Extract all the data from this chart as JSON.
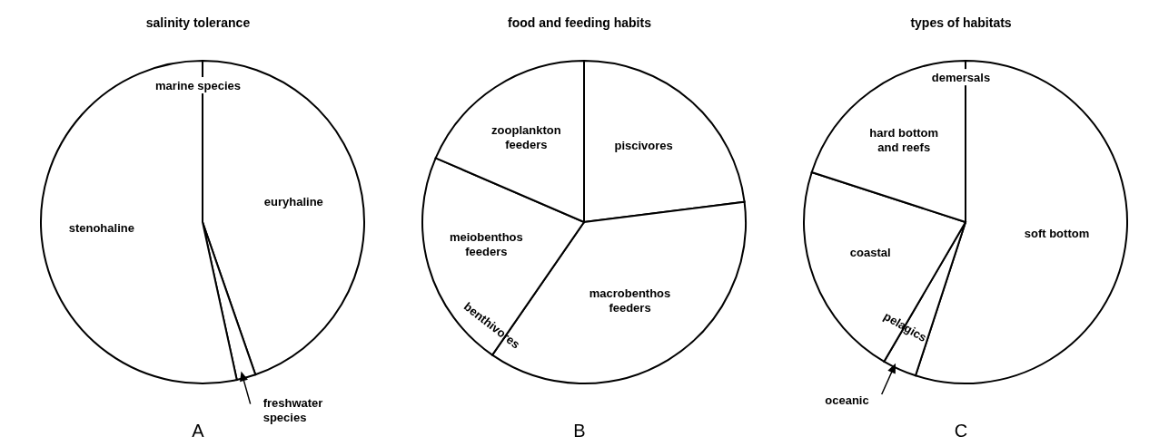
{
  "chart_data": [
    {
      "type": "pie",
      "title": "salinity tolerance",
      "categories": [
        "euryhaline",
        "freshwater species",
        "stenohaline"
      ],
      "values": [
        44.7,
        1.9,
        53.4
      ],
      "colors": [
        "#ffffff",
        "#ffffff",
        "#ffffff"
      ],
      "legend": false,
      "annotations": [
        "marine species",
        "A"
      ]
    },
    {
      "type": "pie",
      "title": "food and feeding habits",
      "categories": [
        "piscivores",
        "macrobenthos feeders",
        "meiobenthos feeders",
        "zooplankton feeders"
      ],
      "values": [
        23.0,
        36.6,
        21.9,
        18.5
      ],
      "colors": [
        "#ffffff",
        "#ffffff",
        "#ffffff",
        "#ffffff"
      ],
      "legend": false,
      "annotations": [
        "benthivores",
        "B"
      ]
    },
    {
      "type": "pie",
      "title": "types of habitats",
      "categories": [
        "soft bottom",
        "oceanic",
        "coastal",
        "hard bottom and reefs"
      ],
      "values": [
        55.0,
        3.4,
        21.6,
        20.0
      ],
      "colors": [
        "#ffffff",
        "#ffffff",
        "#ffffff",
        "#ffffff"
      ],
      "legend": false,
      "annotations": [
        "demersals",
        "pelagics",
        "C"
      ]
    }
  ]
}
